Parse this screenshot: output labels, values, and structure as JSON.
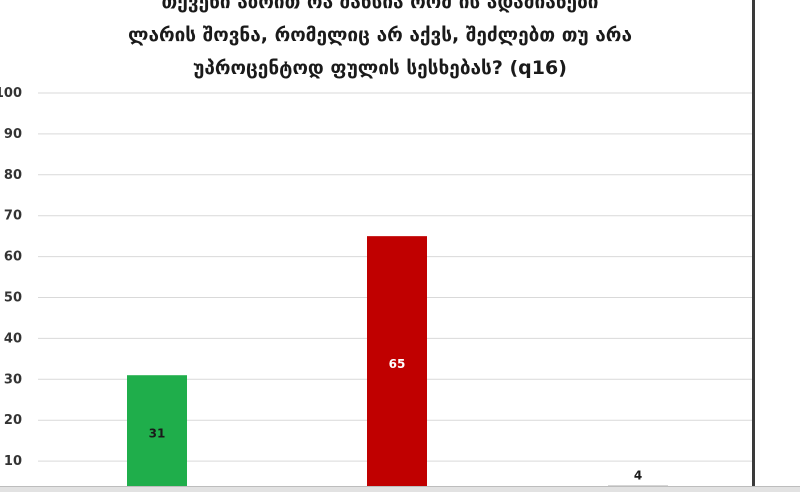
{
  "chart_data": {
    "type": "bar",
    "title_lines": [
      "თქვენი აზრით რა შანსია რომ ის ადამიანები",
      "ლარის შოვნა, რომელიც არ აქვს, შეძლებთ თუ არა",
      "უპროცენტოდ ფულის სესხებას? (q16)"
    ],
    "categories": [
      "",
      "",
      ""
    ],
    "values": [
      31,
      65,
      4
    ],
    "data_labels": [
      "31",
      "65",
      "4"
    ],
    "colors": [
      "#1fae4b",
      "#c00000",
      "#8c8c8c"
    ],
    "label_colors": [
      "#1a1a1a",
      "#ffffff",
      "#1a1a1a"
    ],
    "y_ticks": [
      "10",
      "20",
      "30",
      "40",
      "50",
      "60",
      "70",
      "80",
      "90",
      "100"
    ],
    "ylim": [
      0,
      100
    ],
    "grid": true
  }
}
